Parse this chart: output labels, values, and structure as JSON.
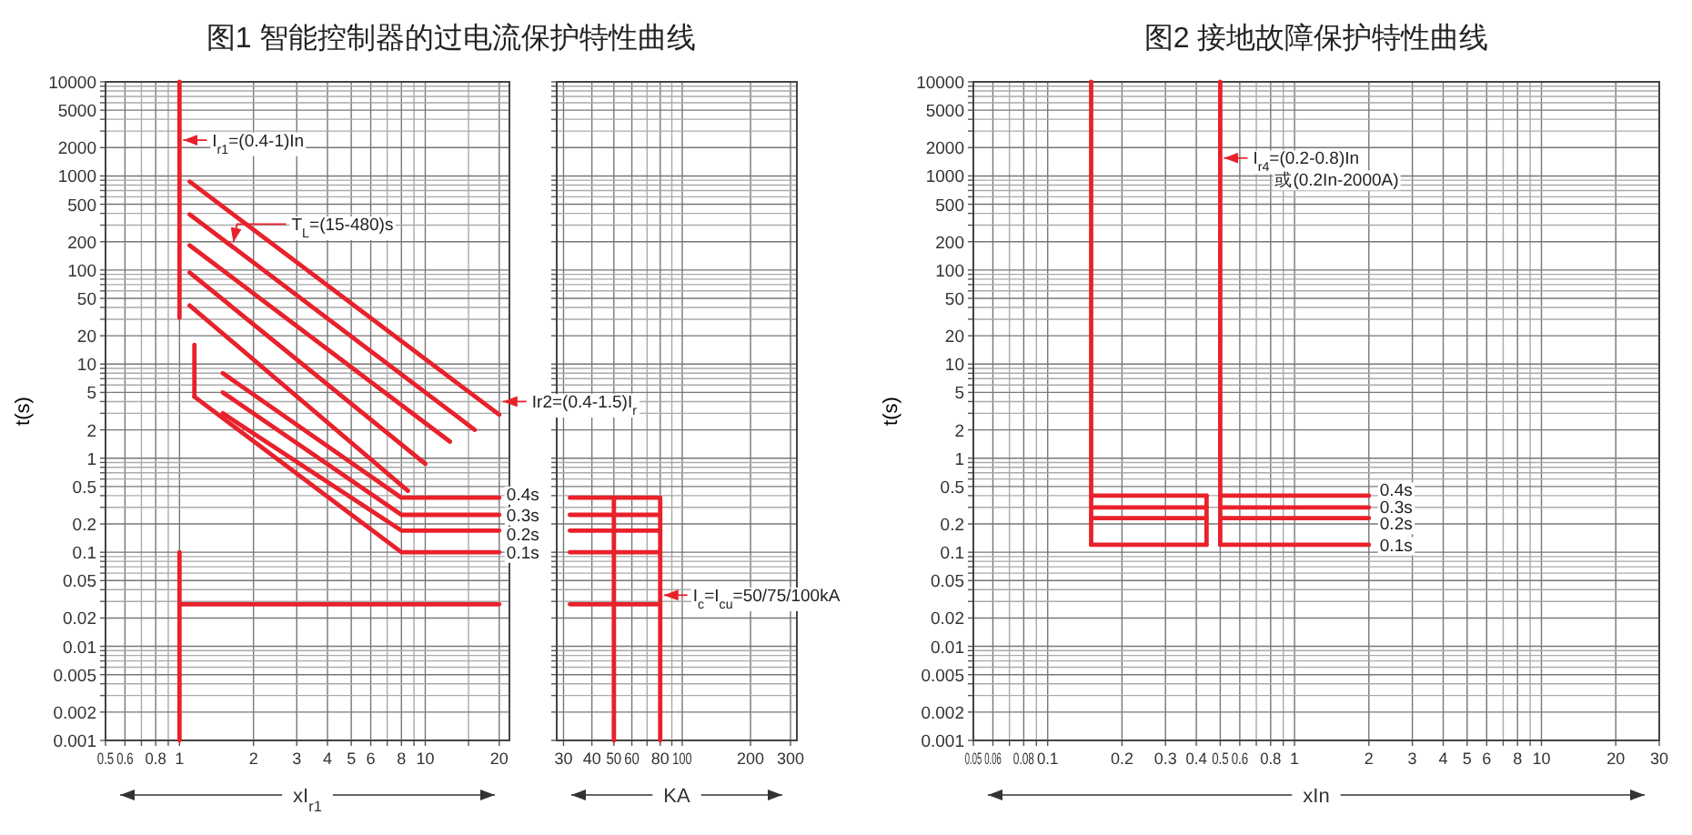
{
  "chart_data": [
    {
      "type": "line",
      "title": "图1  智能控制器的过电流保护特性曲线",
      "xlabel": "xI$_{r1}$",
      "ylabel": "t(s)",
      "log": "xy",
      "grid": true,
      "xlim": [
        0.5,
        22
      ],
      "ylim": [
        0.001,
        10000
      ],
      "xticks": [
        0.5,
        0.6,
        {
          "value": 0.7,
          "label": null
        },
        0.8,
        {
          "value": 0.9,
          "label": null
        },
        1,
        2,
        3,
        4,
        5,
        6,
        {
          "value": 7,
          "label": null
        },
        8,
        {
          "value": 9,
          "label": null
        },
        10,
        {
          "value": 15,
          "label": null
        },
        20
      ],
      "yticks": [
        0.001,
        0.002,
        {
          "value": 0.003,
          "label": null
        },
        {
          "value": 0.004,
          "label": null
        },
        0.005,
        {
          "value": 0.006,
          "label": null
        },
        {
          "value": 0.007,
          "label": null
        },
        {
          "value": 0.008,
          "label": null
        },
        {
          "value": 0.009,
          "label": null
        },
        0.01,
        0.02,
        {
          "value": 0.03,
          "label": null
        },
        {
          "value": 0.04,
          "label": null
        },
        0.05,
        {
          "value": 0.06,
          "label": null
        },
        {
          "value": 0.07,
          "label": null
        },
        {
          "value": 0.08,
          "label": null
        },
        {
          "value": 0.09,
          "label": null
        },
        0.1,
        0.2,
        {
          "value": 0.3,
          "label": null
        },
        {
          "value": 0.4,
          "label": null
        },
        0.5,
        {
          "value": 0.6,
          "label": null
        },
        {
          "value": 0.7,
          "label": null
        },
        {
          "value": 0.8,
          "label": null
        },
        {
          "value": 0.9,
          "label": null
        },
        1,
        2,
        {
          "value": 3,
          "label": null
        },
        {
          "value": 4,
          "label": null
        },
        5,
        {
          "value": 6,
          "label": null
        },
        {
          "value": 7,
          "label": null
        },
        {
          "value": 8,
          "label": null
        },
        {
          "value": 9,
          "label": null
        },
        10,
        20,
        {
          "value": 30,
          "label": null
        },
        {
          "value": 40,
          "label": null
        },
        50,
        {
          "value": 60,
          "label": null
        },
        {
          "value": 70,
          "label": null
        },
        {
          "value": 80,
          "label": null
        },
        {
          "value": 90,
          "label": null
        },
        100,
        200,
        {
          "value": 300,
          "label": null
        },
        {
          "value": 400,
          "label": null
        },
        500,
        {
          "value": 600,
          "label": null
        },
        {
          "value": 700,
          "label": null
        },
        {
          "value": 800,
          "label": null
        },
        {
          "value": 900,
          "label": null
        },
        1000,
        2000,
        {
          "value": 3000,
          "label": null
        },
        {
          "value": 4000,
          "label": null
        },
        5000,
        {
          "value": 6000,
          "label": null
        },
        {
          "value": 7000,
          "label": null
        },
        {
          "value": 8000,
          "label": null
        },
        {
          "value": 9000,
          "label": null
        },
        10000
      ],
      "series": [
        {
          "color": "#e8212b",
          "x": [
            1,
            1
          ],
          "values": [
            10000,
            31
          ]
        },
        {
          "color": "#e8212b",
          "x": [
            1.1,
            20
          ],
          "values": [
            870,
            2.9
          ]
        },
        {
          "color": "#e8212b",
          "x": [
            1.1,
            15.9
          ],
          "values": [
            390,
            2
          ]
        },
        {
          "color": "#e8212b",
          "x": [
            1.1,
            12.6
          ],
          "values": [
            183,
            1.5
          ]
        },
        {
          "color": "#e8212b",
          "x": [
            1.1,
            10
          ],
          "values": [
            94,
            0.87
          ]
        },
        {
          "color": "#e8212b",
          "x": [
            1.1,
            8.5
          ],
          "values": [
            42,
            0.45
          ]
        },
        {
          "color": "#e8212b",
          "x": [
            1.5,
            8,
            20
          ],
          "values": [
            8,
            0.38,
            0.38
          ]
        },
        {
          "color": "#e8212b",
          "x": [
            1.5,
            8,
            20
          ],
          "values": [
            5,
            0.25,
            0.25
          ]
        },
        {
          "color": "#e8212b",
          "x": [
            1.5,
            8,
            20
          ],
          "values": [
            3,
            0.17,
            0.17
          ]
        },
        {
          "color": "#e8212b",
          "x": [
            1.15,
            8,
            20
          ],
          "values": [
            4.5,
            0.1,
            0.1
          ]
        },
        {
          "color": "#e8212b",
          "x": [
            1.15,
            1.15
          ],
          "values": [
            16,
            4.5
          ]
        },
        {
          "color": "#e8212b",
          "x": [
            1,
            1
          ],
          "values": [
            0.1,
            0.001
          ]
        },
        {
          "color": "#e8212b",
          "x": [
            1,
            20
          ],
          "values": [
            0.028,
            0.028
          ]
        }
      ],
      "annotations": [
        {
          "text": "I$_{r1}$=(0.4-1)In",
          "x": 1,
          "y": 2400
        },
        {
          "text": "T$_{L}$=(15-480)s",
          "x": 1.6,
          "y": 180
        },
        {
          "text": "Ir2=(0.4-1.5)I$_{r}$",
          "x": 20,
          "y": 4
        },
        {
          "text": "0.4s",
          "x": 20,
          "y": 0.38
        },
        {
          "text": "0.3s",
          "x": 20,
          "y": 0.25
        },
        {
          "text": "0.2s",
          "x": 20,
          "y": 0.17
        },
        {
          "text": "0.1s",
          "x": 20,
          "y": 0.1
        }
      ]
    },
    {
      "type": "line",
      "xlabel": "KA",
      "log": "xy",
      "grid": true,
      "tick_labels": "x",
      "xlim": [
        28,
        320
      ],
      "ylim": [
        0.001,
        10000
      ],
      "xticks": [
        30,
        40,
        50,
        60,
        {
          "value": 70,
          "label": null
        },
        80,
        {
          "value": 90,
          "label": null
        },
        100,
        200,
        300
      ],
      "yticks": [
        0.001,
        0.002,
        {
          "value": 0.003,
          "label": null
        },
        {
          "value": 0.004,
          "label": null
        },
        0.005,
        {
          "value": 0.006,
          "label": null
        },
        {
          "value": 0.007,
          "label": null
        },
        {
          "value": 0.008,
          "label": null
        },
        {
          "value": 0.009,
          "label": null
        },
        0.01,
        0.02,
        {
          "value": 0.03,
          "label": null
        },
        {
          "value": 0.04,
          "label": null
        },
        0.05,
        {
          "value": 0.06,
          "label": null
        },
        {
          "value": 0.07,
          "label": null
        },
        {
          "value": 0.08,
          "label": null
        },
        {
          "value": 0.09,
          "label": null
        },
        0.1,
        0.2,
        {
          "value": 0.3,
          "label": null
        },
        {
          "value": 0.4,
          "label": null
        },
        0.5,
        {
          "value": 0.6,
          "label": null
        },
        {
          "value": 0.7,
          "label": null
        },
        {
          "value": 0.8,
          "label": null
        },
        {
          "value": 0.9,
          "label": null
        },
        1,
        2,
        {
          "value": 3,
          "label": null
        },
        {
          "value": 4,
          "label": null
        },
        5,
        {
          "value": 6,
          "label": null
        },
        {
          "value": 7,
          "label": null
        },
        {
          "value": 8,
          "label": null
        },
        {
          "value": 9,
          "label": null
        },
        10,
        20,
        {
          "value": 30,
          "label": null
        },
        {
          "value": 40,
          "label": null
        },
        50,
        {
          "value": 60,
          "label": null
        },
        {
          "value": 70,
          "label": null
        },
        {
          "value": 80,
          "label": null
        },
        {
          "value": 90,
          "label": null
        },
        100,
        200,
        {
          "value": 300,
          "label": null
        },
        {
          "value": 400,
          "label": null
        },
        500,
        {
          "value": 600,
          "label": null
        },
        {
          "value": 700,
          "label": null
        },
        {
          "value": 800,
          "label": null
        },
        {
          "value": 900,
          "label": null
        },
        1000,
        2000,
        {
          "value": 3000,
          "label": null
        },
        {
          "value": 4000,
          "label": null
        },
        5000,
        {
          "value": 6000,
          "label": null
        },
        {
          "value": 7000,
          "label": null
        },
        {
          "value": 8000,
          "label": null
        },
        {
          "value": 9000,
          "label": null
        },
        10000
      ],
      "series": [
        {
          "color": "#e8212b",
          "x": [
            32,
            80,
            80
          ],
          "values": [
            0.38,
            0.38,
            0.001
          ]
        },
        {
          "color": "#e8212b",
          "x": [
            32,
            80
          ],
          "values": [
            0.25,
            0.25
          ]
        },
        {
          "color": "#e8212b",
          "x": [
            32,
            80
          ],
          "values": [
            0.17,
            0.17
          ]
        },
        {
          "color": "#e8212b",
          "x": [
            32,
            80
          ],
          "values": [
            0.1,
            0.1
          ]
        },
        {
          "color": "#e8212b",
          "x": [
            32,
            80
          ],
          "values": [
            0.028,
            0.028
          ]
        },
        {
          "color": "#e8212b",
          "x": [
            50,
            50
          ],
          "values": [
            0.38,
            0.001
          ]
        }
      ],
      "annotations": [
        {
          "text": "I$_{c}$=I$_{cu}$=50/75/100kA",
          "x": 80,
          "y": 0.035
        }
      ]
    },
    {
      "type": "line",
      "title": "图2  接地故障保护特性曲线",
      "xlabel": "xIn",
      "ylabel": "t(s)",
      "log": "xy",
      "grid": true,
      "xlim": [
        0.05,
        30
      ],
      "ylim": [
        0.001,
        10000
      ],
      "xticks": [
        0.05,
        0.06,
        {
          "value": 0.07,
          "label": null
        },
        0.08,
        {
          "value": 0.09,
          "label": null
        },
        0.1,
        0.2,
        0.3,
        0.4,
        0.5,
        0.6,
        {
          "value": 0.7,
          "label": null
        },
        0.8,
        {
          "value": 0.9,
          "label": null
        },
        1,
        2,
        3,
        4,
        5,
        6,
        {
          "value": 7,
          "label": null
        },
        8,
        {
          "value": 9,
          "label": null
        },
        10,
        20,
        30
      ],
      "yticks": [
        0.001,
        0.002,
        {
          "value": 0.003,
          "label": null
        },
        {
          "value": 0.004,
          "label": null
        },
        0.005,
        {
          "value": 0.006,
          "label": null
        },
        {
          "value": 0.007,
          "label": null
        },
        {
          "value": 0.008,
          "label": null
        },
        {
          "value": 0.009,
          "label": null
        },
        0.01,
        0.02,
        {
          "value": 0.03,
          "label": null
        },
        {
          "value": 0.04,
          "label": null
        },
        0.05,
        {
          "value": 0.06,
          "label": null
        },
        {
          "value": 0.07,
          "label": null
        },
        {
          "value": 0.08,
          "label": null
        },
        {
          "value": 0.09,
          "label": null
        },
        0.1,
        0.2,
        {
          "value": 0.3,
          "label": null
        },
        {
          "value": 0.4,
          "label": null
        },
        0.5,
        {
          "value": 0.6,
          "label": null
        },
        {
          "value": 0.7,
          "label": null
        },
        {
          "value": 0.8,
          "label": null
        },
        {
          "value": 0.9,
          "label": null
        },
        1,
        2,
        {
          "value": 3,
          "label": null
        },
        {
          "value": 4,
          "label": null
        },
        5,
        {
          "value": 6,
          "label": null
        },
        {
          "value": 7,
          "label": null
        },
        {
          "value": 8,
          "label": null
        },
        {
          "value": 9,
          "label": null
        },
        10,
        20,
        {
          "value": 30,
          "label": null
        },
        {
          "value": 40,
          "label": null
        },
        50,
        {
          "value": 60,
          "label": null
        },
        {
          "value": 70,
          "label": null
        },
        {
          "value": 80,
          "label": null
        },
        {
          "value": 90,
          "label": null
        },
        100,
        200,
        {
          "value": 300,
          "label": null
        },
        {
          "value": 400,
          "label": null
        },
        500,
        {
          "value": 600,
          "label": null
        },
        {
          "value": 700,
          "label": null
        },
        {
          "value": 800,
          "label": null
        },
        {
          "value": 900,
          "label": null
        },
        1000,
        2000,
        {
          "value": 3000,
          "label": null
        },
        {
          "value": 4000,
          "label": null
        },
        5000,
        {
          "value": 6000,
          "label": null
        },
        {
          "value": 7000,
          "label": null
        },
        {
          "value": 8000,
          "label": null
        },
        {
          "value": 9000,
          "label": null
        },
        10000
      ],
      "series": [
        {
          "color": "#e8212b",
          "x": [
            0.15,
            0.15
          ],
          "values": [
            10000,
            0.12
          ]
        },
        {
          "color": "#e8212b",
          "x": [
            0.15,
            0.44
          ],
          "values": [
            0.4,
            0.4
          ]
        },
        {
          "color": "#e8212b",
          "x": [
            0.15,
            0.44
          ],
          "values": [
            0.3,
            0.3
          ]
        },
        {
          "color": "#e8212b",
          "x": [
            0.15,
            0.44
          ],
          "values": [
            0.23,
            0.23
          ]
        },
        {
          "color": "#e8212b",
          "x": [
            0.15,
            0.44
          ],
          "values": [
            0.12,
            0.12
          ]
        },
        {
          "color": "#e8212b",
          "x": [
            0.44,
            0.44
          ],
          "values": [
            0.4,
            0.12
          ]
        },
        {
          "color": "#e8212b",
          "x": [
            0.5,
            0.5
          ],
          "values": [
            10000,
            0.12
          ]
        },
        {
          "color": "#e8212b",
          "x": [
            0.5,
            2
          ],
          "values": [
            0.4,
            0.4
          ]
        },
        {
          "color": "#e8212b",
          "x": [
            0.5,
            2
          ],
          "values": [
            0.3,
            0.3
          ]
        },
        {
          "color": "#e8212b",
          "x": [
            0.5,
            2
          ],
          "values": [
            0.23,
            0.23
          ]
        },
        {
          "color": "#e8212b",
          "x": [
            0.5,
            2
          ],
          "values": [
            0.12,
            0.12
          ]
        }
      ],
      "annotations": [
        {
          "text": "I$_{r4}$=(0.2-0.8)In",
          "x": 0.5,
          "y": 1550
        },
        "或(0.2In-2000A)",
        {
          "text": "0.4s",
          "x": 2,
          "y": 0.4
        },
        {
          "text": "0.3s",
          "x": 2,
          "y": 0.3
        },
        {
          "text": "0.2s",
          "x": 2,
          "y": 0.23
        },
        {
          "text": "0.1s",
          "x": 2,
          "y": 0.12
        }
      ]
    }
  ]
}
